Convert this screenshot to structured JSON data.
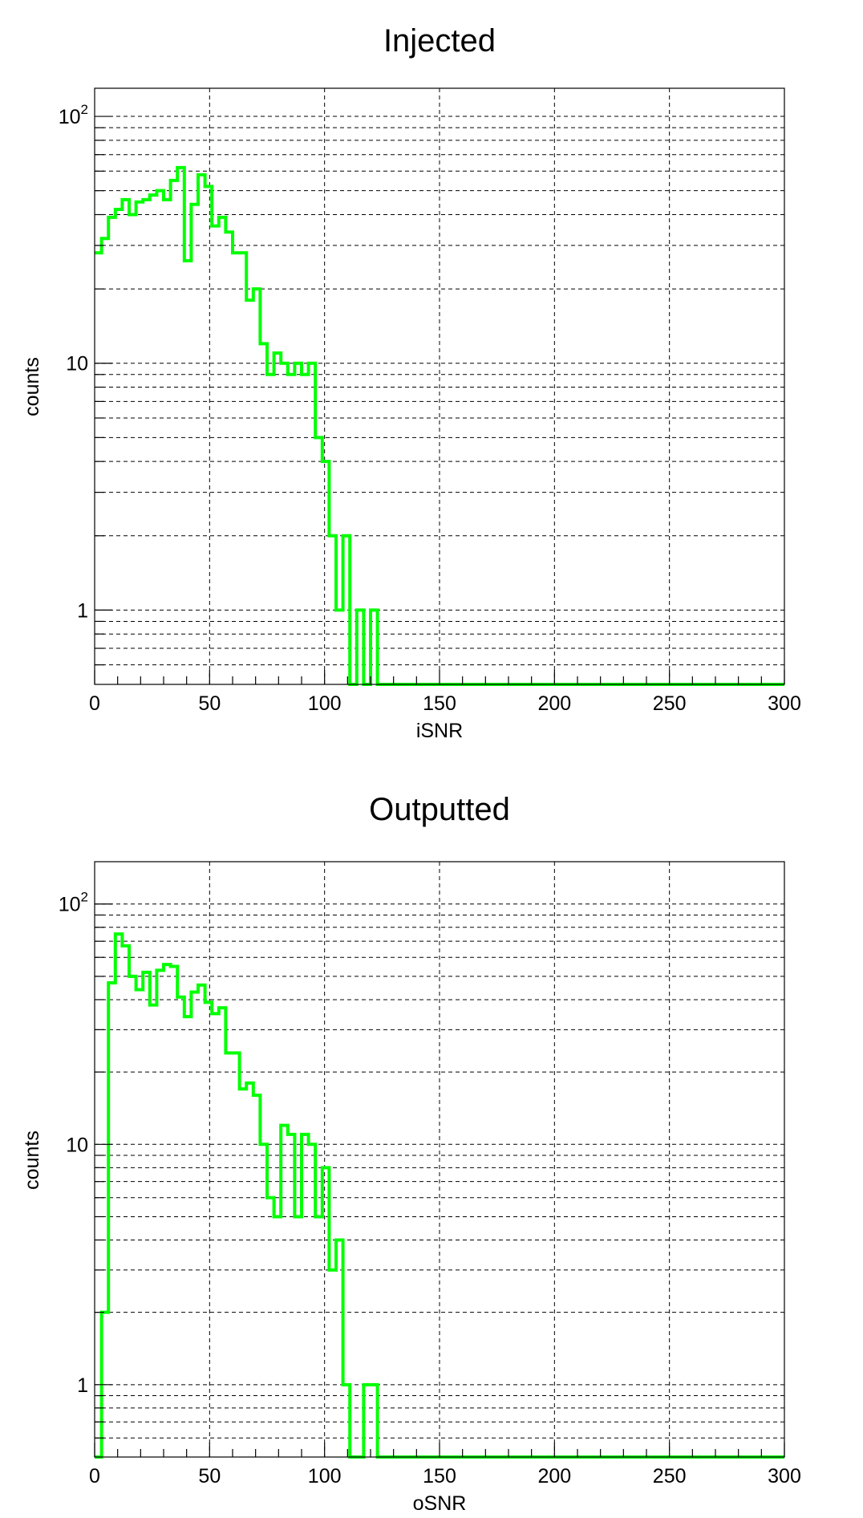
{
  "chart_data": [
    {
      "type": "histogram",
      "title": "Injected",
      "xlabel": "iSNR",
      "ylabel": "counts",
      "xlim": [
        0,
        300
      ],
      "ylim": [
        0.5,
        130
      ],
      "yscale": "log",
      "grid": true,
      "bin_width": 3,
      "line_color": "#00ff00",
      "x_ticks": [
        0,
        50,
        100,
        150,
        200,
        250,
        300
      ],
      "x_tick_labels": [
        "0",
        "50",
        "100",
        "150",
        "200",
        "250",
        "300"
      ],
      "y_ticks": [
        1,
        10,
        100
      ],
      "y_tick_labels": [
        {
          "base": "1",
          "exp": ""
        },
        {
          "base": "10",
          "exp": ""
        },
        {
          "base": "10",
          "exp": "2"
        }
      ],
      "bins": [
        {
          "x": 0,
          "y": 28
        },
        {
          "x": 3,
          "y": 32
        },
        {
          "x": 6,
          "y": 39
        },
        {
          "x": 9,
          "y": 42
        },
        {
          "x": 12,
          "y": 46
        },
        {
          "x": 15,
          "y": 40
        },
        {
          "x": 18,
          "y": 45
        },
        {
          "x": 21,
          "y": 46
        },
        {
          "x": 24,
          "y": 48
        },
        {
          "x": 27,
          "y": 50
        },
        {
          "x": 30,
          "y": 46
        },
        {
          "x": 33,
          "y": 55
        },
        {
          "x": 36,
          "y": 62
        },
        {
          "x": 39,
          "y": 26
        },
        {
          "x": 42,
          "y": 44
        },
        {
          "x": 45,
          "y": 58
        },
        {
          "x": 48,
          "y": 52
        },
        {
          "x": 51,
          "y": 36
        },
        {
          "x": 54,
          "y": 39
        },
        {
          "x": 57,
          "y": 34
        },
        {
          "x": 60,
          "y": 28
        },
        {
          "x": 63,
          "y": 28
        },
        {
          "x": 66,
          "y": 18
        },
        {
          "x": 69,
          "y": 20
        },
        {
          "x": 72,
          "y": 12
        },
        {
          "x": 75,
          "y": 9
        },
        {
          "x": 78,
          "y": 11
        },
        {
          "x": 81,
          "y": 10
        },
        {
          "x": 84,
          "y": 9
        },
        {
          "x": 87,
          "y": 10
        },
        {
          "x": 90,
          "y": 9
        },
        {
          "x": 93,
          "y": 10
        },
        {
          "x": 96,
          "y": 5
        },
        {
          "x": 99,
          "y": 4
        },
        {
          "x": 102,
          "y": 2
        },
        {
          "x": 105,
          "y": 1
        },
        {
          "x": 108,
          "y": 2
        },
        {
          "x": 111,
          "y": 0
        },
        {
          "x": 114,
          "y": 1
        },
        {
          "x": 117,
          "y": 0
        },
        {
          "x": 120,
          "y": 1
        },
        {
          "x": 123,
          "y": 0
        }
      ]
    },
    {
      "type": "histogram",
      "title": "Outputted",
      "xlabel": "oSNR",
      "ylabel": "counts",
      "xlim": [
        0,
        300
      ],
      "ylim": [
        0.5,
        150
      ],
      "yscale": "log",
      "grid": true,
      "bin_width": 3,
      "line_color": "#00ff00",
      "x_ticks": [
        0,
        50,
        100,
        150,
        200,
        250,
        300
      ],
      "x_tick_labels": [
        "0",
        "50",
        "100",
        "150",
        "200",
        "250",
        "300"
      ],
      "y_ticks": [
        1,
        10,
        100
      ],
      "y_tick_labels": [
        {
          "base": "1",
          "exp": ""
        },
        {
          "base": "10",
          "exp": ""
        },
        {
          "base": "10",
          "exp": "2"
        }
      ],
      "bins": [
        {
          "x": 0,
          "y": 0
        },
        {
          "x": 3,
          "y": 2
        },
        {
          "x": 6,
          "y": 47
        },
        {
          "x": 9,
          "y": 75
        },
        {
          "x": 12,
          "y": 67
        },
        {
          "x": 15,
          "y": 50
        },
        {
          "x": 18,
          "y": 44
        },
        {
          "x": 21,
          "y": 52
        },
        {
          "x": 24,
          "y": 38
        },
        {
          "x": 27,
          "y": 53
        },
        {
          "x": 30,
          "y": 56
        },
        {
          "x": 33,
          "y": 55
        },
        {
          "x": 36,
          "y": 41
        },
        {
          "x": 39,
          "y": 34
        },
        {
          "x": 42,
          "y": 43
        },
        {
          "x": 45,
          "y": 46
        },
        {
          "x": 48,
          "y": 39
        },
        {
          "x": 51,
          "y": 35
        },
        {
          "x": 54,
          "y": 37
        },
        {
          "x": 57,
          "y": 24
        },
        {
          "x": 60,
          "y": 24
        },
        {
          "x": 63,
          "y": 17
        },
        {
          "x": 66,
          "y": 18
        },
        {
          "x": 69,
          "y": 16
        },
        {
          "x": 72,
          "y": 10
        },
        {
          "x": 75,
          "y": 6
        },
        {
          "x": 78,
          "y": 5
        },
        {
          "x": 81,
          "y": 12
        },
        {
          "x": 84,
          "y": 11
        },
        {
          "x": 87,
          "y": 5
        },
        {
          "x": 90,
          "y": 11
        },
        {
          "x": 93,
          "y": 10
        },
        {
          "x": 96,
          "y": 5
        },
        {
          "x": 99,
          "y": 8
        },
        {
          "x": 102,
          "y": 3
        },
        {
          "x": 105,
          "y": 4
        },
        {
          "x": 108,
          "y": 1
        },
        {
          "x": 111,
          "y": 0
        },
        {
          "x": 114,
          "y": 0
        },
        {
          "x": 117,
          "y": 1
        },
        {
          "x": 120,
          "y": 1
        },
        {
          "x": 123,
          "y": 0
        }
      ]
    }
  ]
}
